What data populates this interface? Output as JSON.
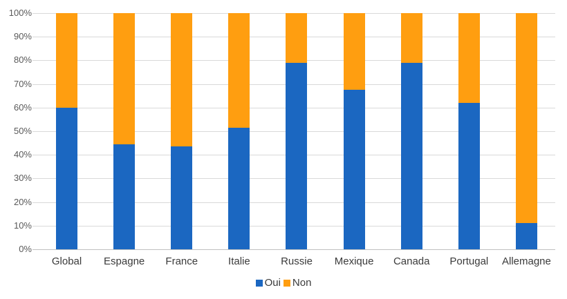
{
  "chart_data": {
    "type": "bar",
    "subtype": "stacked-100-percent-vertical",
    "title": "",
    "xlabel": "",
    "ylabel": "",
    "categories": [
      "Global",
      "Espagne",
      "France",
      "Italie",
      "Russie",
      "Mexique",
      "Canada",
      "Portugal",
      "Allemagne"
    ],
    "series": [
      {
        "name": "Oui",
        "color": "#1B67C1",
        "values": [
          60,
          44.5,
          43.5,
          51.5,
          79,
          67.5,
          79,
          62,
          11
        ]
      },
      {
        "name": "Non",
        "color": "#FF9E10",
        "values": [
          40,
          55.5,
          56.5,
          48.5,
          21,
          32.5,
          21,
          38,
          89
        ]
      }
    ],
    "y_axis": {
      "min": 0,
      "max": 100,
      "tick_step": 10,
      "tick_labels": [
        "0%",
        "10%",
        "20%",
        "30%",
        "40%",
        "50%",
        "60%",
        "70%",
        "80%",
        "90%",
        "100%"
      ]
    },
    "grid": true,
    "legend_position": "bottom-center"
  },
  "styles": {
    "background": "#FFFFFF",
    "grid_color": "#D9D9D9",
    "axis_line_color": "#BFBFBF",
    "tick_label_color": "#595959",
    "category_label_color": "#3A3A3A",
    "legend_label_color": "#3A3A3A"
  }
}
